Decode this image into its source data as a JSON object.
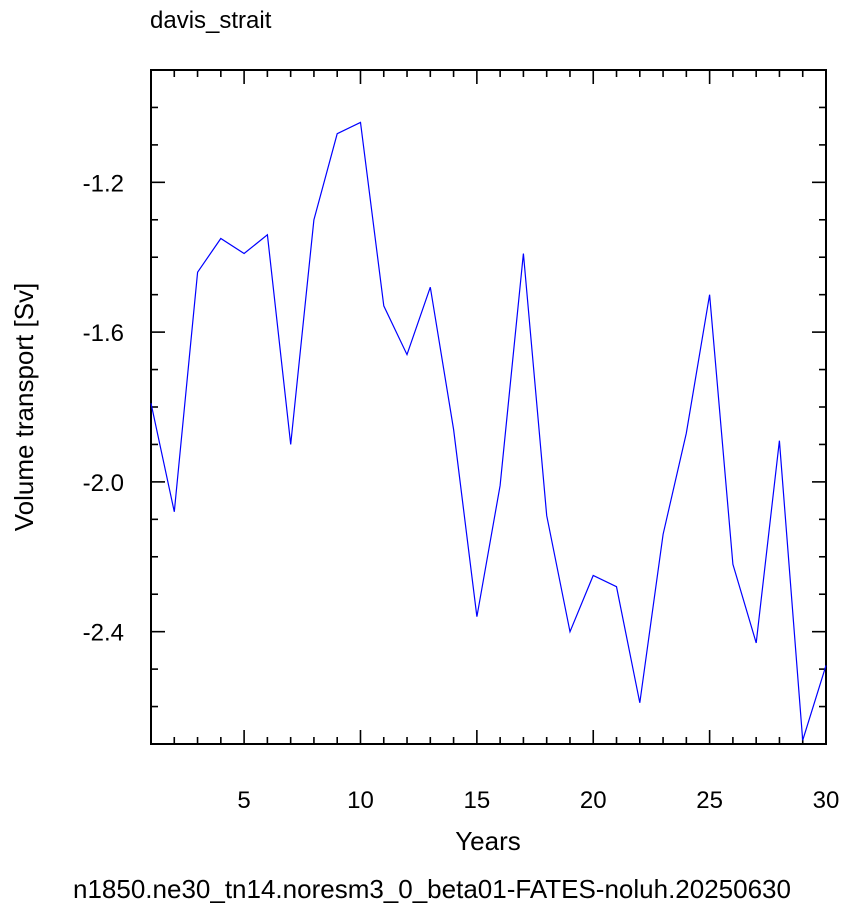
{
  "chart_data": {
    "type": "line",
    "title": "davis_strait",
    "xlabel": "Years",
    "ylabel": "Volume transport [Sv]",
    "footer": "n1850.ne30_tn14.noresm3_0_beta01-FATES-noluh.20250630",
    "footer_color": "#0000ff",
    "line_color": "#0000ff",
    "xlim": [
      1,
      30
    ],
    "ylim": [
      -2.7,
      -0.9
    ],
    "x_ticks": [
      5,
      10,
      15,
      20,
      25,
      30
    ],
    "x_tick_labels": [
      "5",
      "10",
      "15",
      "20",
      "25",
      "30"
    ],
    "y_ticks": [
      -1.2,
      -1.6,
      -2.0,
      -2.4
    ],
    "y_tick_labels": [
      "-1.2",
      "-1.6",
      "-2.0",
      "-2.4"
    ],
    "grid": false,
    "series": [
      {
        "x": [
          1,
          2,
          3,
          4,
          5,
          6,
          7,
          8,
          9,
          10,
          11,
          12,
          13,
          14,
          15,
          16,
          17,
          18,
          19,
          20,
          21,
          22,
          23,
          24,
          25,
          26,
          27,
          28,
          29,
          30
        ],
        "values": [
          -1.79,
          -2.08,
          -1.44,
          -1.35,
          -1.39,
          -1.34,
          -1.9,
          -1.3,
          -1.07,
          -1.04,
          -1.53,
          -1.66,
          -1.48,
          -1.86,
          -2.36,
          -2.01,
          -1.39,
          -2.09,
          -2.4,
          -2.25,
          -2.28,
          -2.59,
          -2.14,
          -1.87,
          -1.5,
          -2.22,
          -2.43,
          -1.89,
          -2.69,
          -2.49
        ]
      }
    ]
  }
}
